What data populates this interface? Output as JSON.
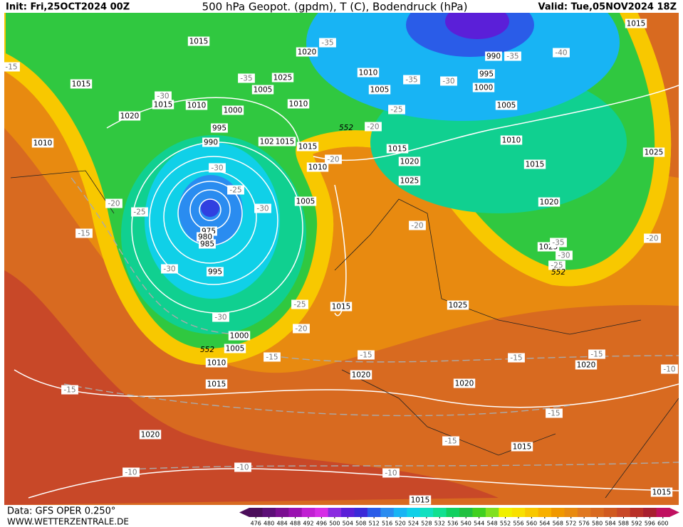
{
  "header": {
    "init": "Init: Fri,25OCT2024 00Z",
    "title": "500 hPa Geopot. (gpdm), T (C), Bodendruck (hPa)",
    "valid": "Valid: Tue,05NOV2024 18Z"
  },
  "footer": {
    "data": "Data: GFS OPER 0.250°",
    "site": "WWW.WETTERZENTRALE.DE"
  },
  "map": {
    "pressure_labels": [
      "1015",
      "1015",
      "1020",
      "1010",
      "1005",
      "995",
      "1000",
      "990",
      "1005",
      "1010",
      "1015",
      "1020",
      "1025",
      "1025",
      "1015",
      "1015",
      "1010",
      "1020",
      "1000",
      "995",
      "990",
      "1005",
      "1025",
      "1010",
      "1020",
      "1015",
      "1015",
      "1010",
      "1015",
      "1020",
      "1025",
      "1005",
      "1010",
      "975",
      "980",
      "985",
      "995",
      "1015",
      "1025",
      "1000",
      "1005",
      "1010",
      "1015",
      "1020",
      "1020",
      "1020",
      "1020",
      "1015",
      "1015",
      "1015"
    ],
    "temperature_labels": [
      "-35",
      "-35",
      "-40",
      "-35",
      "-30",
      "-35",
      "-30",
      "-25",
      "-20",
      "-20",
      "-30",
      "-25",
      "-30",
      "-20",
      "-25",
      "-20",
      "-15",
      "-30",
      "-25",
      "-20",
      "-30",
      "-15",
      "-15",
      "-15",
      "-15",
      "-10",
      "-15",
      "-15",
      "-15",
      "-10",
      "-10",
      "-10",
      "-15",
      "-20",
      "-30",
      "-25",
      "-35"
    ],
    "height_labels": [
      "552",
      "552",
      "552"
    ]
  },
  "colorbar": {
    "ticks": [
      476,
      480,
      484,
      488,
      492,
      496,
      500,
      504,
      508,
      512,
      516,
      520,
      524,
      528,
      532,
      536,
      540,
      544,
      548,
      552,
      556,
      560,
      564,
      568,
      572,
      576,
      580,
      584,
      588,
      592,
      596,
      600
    ],
    "colors": [
      "#4b0d5a",
      "#5c0f77",
      "#7a0f91",
      "#9a12b0",
      "#c020d2",
      "#d62ee6",
      "#8a2be0",
      "#5b1fd8",
      "#3b2ad8",
      "#2a5ce8",
      "#2a8cf0",
      "#18b4f4",
      "#10d0e8",
      "#10e0c0",
      "#10e090",
      "#10d060",
      "#20c040",
      "#40d020",
      "#80e020",
      "#f0f000",
      "#f8e000",
      "#f8c800",
      "#f8b000",
      "#f09800",
      "#e88a10",
      "#e07820",
      "#d86a20",
      "#d05a20",
      "#c84828",
      "#b83028",
      "#a82030",
      "#c01060"
    ]
  }
}
